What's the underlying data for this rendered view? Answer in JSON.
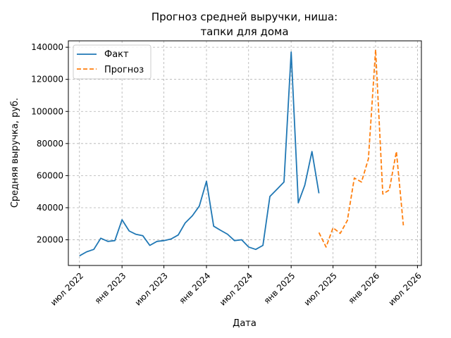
{
  "chart_data": {
    "type": "line",
    "title_lines": [
      "Прогноз средней выручки, ниша:",
      "тапки для дома"
    ],
    "xlabel": "Дата",
    "ylabel": "Средняя выручка, руб.",
    "ylim": [
      4000,
      144000
    ],
    "xlim": [
      "2022-05-14",
      "2026-07-18"
    ],
    "grid": true,
    "legend_position": "top-left",
    "y_ticks": [
      {
        "value": 20000,
        "label": "20000"
      },
      {
        "value": 40000,
        "label": "40000"
      },
      {
        "value": 60000,
        "label": "60000"
      },
      {
        "value": 80000,
        "label": "80000"
      },
      {
        "value": 100000,
        "label": "100000"
      },
      {
        "value": 120000,
        "label": "120000"
      },
      {
        "value": 140000,
        "label": "140000"
      }
    ],
    "x_ticks": [
      {
        "date": "2022-07-01",
        "label": "июл 2022"
      },
      {
        "date": "2023-01-01",
        "label": "янв 2023"
      },
      {
        "date": "2023-07-01",
        "label": "июл 2023"
      },
      {
        "date": "2024-01-01",
        "label": "янв 2024"
      },
      {
        "date": "2024-07-01",
        "label": "июл 2024"
      },
      {
        "date": "2025-01-01",
        "label": "янв 2025"
      },
      {
        "date": "2025-07-01",
        "label": "июл 2025"
      },
      {
        "date": "2026-01-01",
        "label": "янв 2026"
      },
      {
        "date": "2026-07-01",
        "label": "июл 2026"
      }
    ],
    "series": [
      {
        "name": "Факт",
        "color": "#1f77b4",
        "style": "solid",
        "x": [
          "2022-07-01",
          "2022-08-01",
          "2022-09-01",
          "2022-10-01",
          "2022-11-01",
          "2022-12-01",
          "2023-01-01",
          "2023-02-01",
          "2023-03-01",
          "2023-04-01",
          "2023-05-01",
          "2023-06-01",
          "2023-07-01",
          "2023-08-01",
          "2023-09-01",
          "2023-10-01",
          "2023-11-01",
          "2023-12-01",
          "2024-01-01",
          "2024-02-01",
          "2024-03-01",
          "2024-04-01",
          "2024-05-01",
          "2024-06-01",
          "2024-07-01",
          "2024-08-01",
          "2024-09-01",
          "2024-10-01",
          "2024-11-01",
          "2024-12-01",
          "2025-01-01",
          "2025-02-01",
          "2025-03-01",
          "2025-04-01",
          "2025-05-01"
        ],
        "values": [
          10000,
          12500,
          14000,
          21000,
          19000,
          19500,
          32500,
          25500,
          23500,
          22500,
          16500,
          19000,
          19500,
          20500,
          23000,
          30500,
          35000,
          41000,
          56500,
          28500,
          26000,
          23500,
          19500,
          20000,
          15500,
          14000,
          16500,
          47000,
          51500,
          56000,
          137000,
          43000,
          54000,
          75000,
          49000
        ]
      },
      {
        "name": "Прогноз",
        "color": "#ff7f0e",
        "style": "dashed",
        "x": [
          "2025-05-01",
          "2025-06-01",
          "2025-07-01",
          "2025-08-01",
          "2025-09-01",
          "2025-10-01",
          "2025-11-01",
          "2025-12-01",
          "2026-01-01",
          "2026-02-01",
          "2026-03-01",
          "2026-04-01",
          "2026-05-01"
        ],
        "values": [
          24500,
          15500,
          27500,
          24000,
          32000,
          58500,
          56000,
          70500,
          138500,
          48500,
          51000,
          75000,
          29000
        ]
      }
    ]
  }
}
